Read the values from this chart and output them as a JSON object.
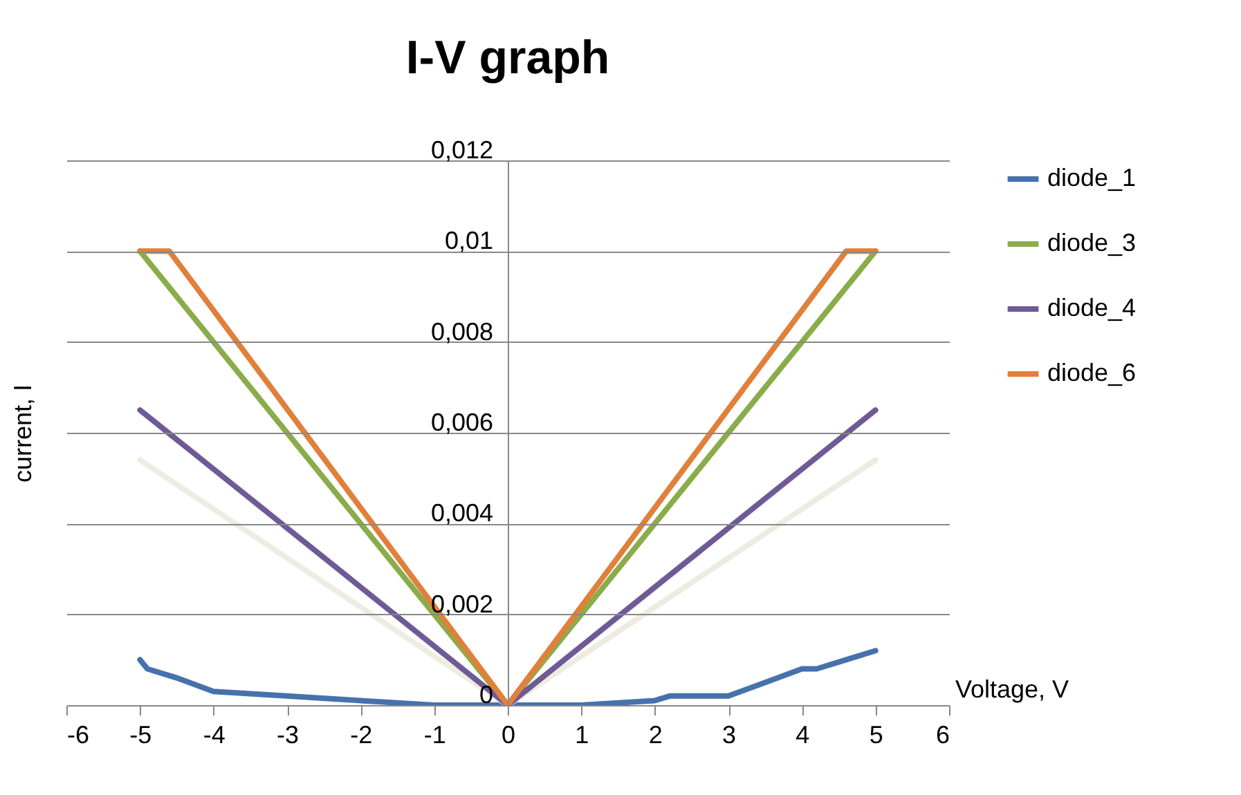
{
  "chart_data": {
    "type": "line",
    "title": "I-V graph",
    "xlabel": "Voltage, V",
    "ylabel": "current, I",
    "xlim": [
      -6,
      6
    ],
    "xticks": [
      -6,
      -5,
      -4,
      -3,
      -2,
      -1,
      0,
      1,
      2,
      3,
      4,
      5,
      6
    ],
    "ylim": [
      0,
      0.012
    ],
    "yticks": [
      {
        "value": 0,
        "label": "0"
      },
      {
        "value": 0.002,
        "label": "0,002"
      },
      {
        "value": 0.004,
        "label": "0,004"
      },
      {
        "value": 0.006,
        "label": "0,006"
      },
      {
        "value": 0.008,
        "label": "0,008"
      },
      {
        "value": 0.01,
        "label": "0,01"
      },
      {
        "value": 0.012,
        "label": "0,012"
      }
    ],
    "grid": "y",
    "legend": "right",
    "line_style": "solid",
    "series": [
      {
        "name": "diode_1",
        "color": "#4672ac",
        "x": [
          -5,
          -4.9,
          -4.5,
          -4,
          -3,
          -2,
          -1,
          0,
          1,
          2,
          2.2,
          3,
          3.5,
          4,
          4.2,
          4.6,
          5
        ],
        "values": [
          0.001,
          0.0008,
          0.0006,
          0.0003,
          0.0002,
          0.0001,
          0,
          0,
          0,
          0.0001,
          0.0002,
          0.0002,
          0.0005,
          0.0008,
          0.0008,
          0.001,
          0.0012
        ]
      },
      {
        "color": "#eeece1",
        "x": [
          -5,
          0,
          5
        ],
        "values": [
          0.0054,
          0,
          0.0054
        ]
      },
      {
        "name": "diode_3",
        "color": "#8aac4a",
        "x": [
          -5,
          0,
          5
        ],
        "values": [
          0.01,
          0,
          0.01
        ]
      },
      {
        "name": "diode_4",
        "color": "#6f5a96",
        "x": [
          -5,
          0,
          5
        ],
        "values": [
          0.0065,
          0,
          0.0065
        ]
      },
      {
        "name": "diode_6",
        "color": "#e0803a",
        "x": [
          -5,
          -4.6,
          0,
          4.6,
          5
        ],
        "values": [
          0.01,
          0.01,
          0,
          0.01,
          0.01
        ]
      }
    ]
  }
}
